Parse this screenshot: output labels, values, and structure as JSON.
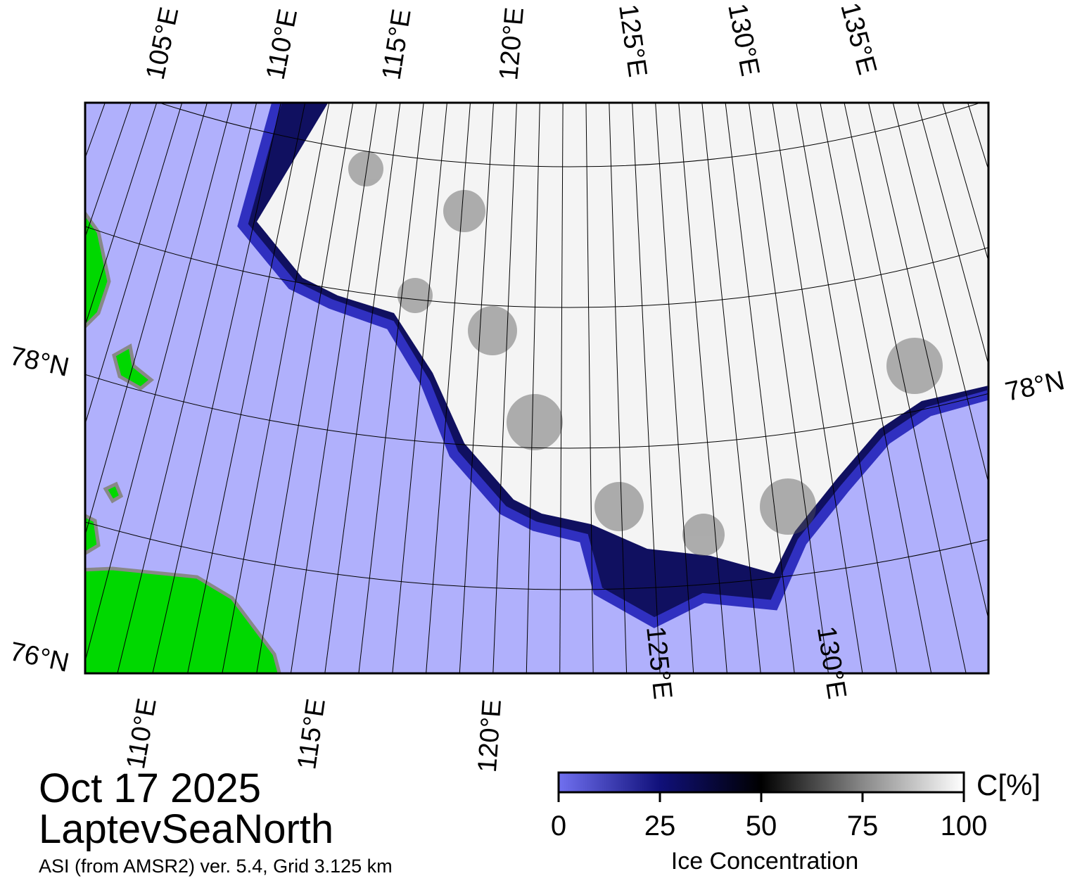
{
  "map": {
    "top_labels": [
      "105°E",
      "110°E",
      "115°E",
      "120°E",
      "125°E",
      "130°E",
      "135°E"
    ],
    "bottom_labels": [
      "110°E",
      "115°E",
      "120°E",
      "125°E",
      "130°E"
    ],
    "left_labels": [
      "78°N",
      "76°N"
    ],
    "right_labels": [
      "78°N"
    ]
  },
  "info": {
    "date": "Oct 17 2025",
    "region": "LaptevSeaNorth",
    "source": "ASI (from AMSR2) ver. 5.4,  Grid 3.125 km"
  },
  "colorbar": {
    "lim": [
      0,
      100
    ],
    "ticks": [
      0,
      25,
      50,
      75,
      100
    ],
    "label": "Ice Concentration",
    "unit": "C[%]"
  }
}
